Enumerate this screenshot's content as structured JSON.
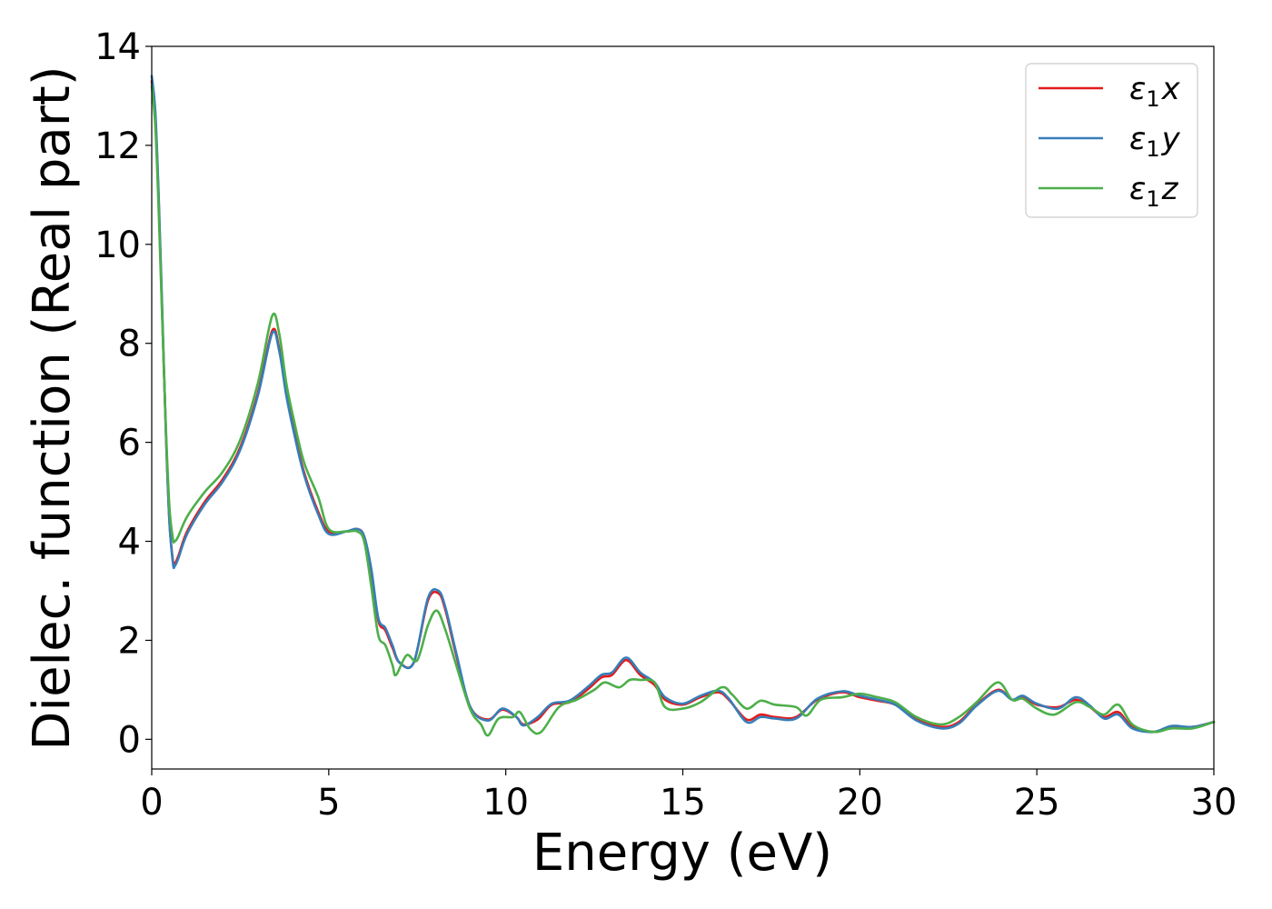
{
  "chart_data": {
    "type": "line",
    "title": "",
    "xlabel": "Energy (eV)",
    "ylabel": "Dielec. function (Real part)",
    "xlim": [
      0,
      30
    ],
    "ylim": [
      -0.6,
      14
    ],
    "xticks": [
      0,
      5,
      10,
      15,
      20,
      25,
      30
    ],
    "yticks": [
      0,
      2,
      4,
      6,
      8,
      10,
      12,
      14
    ],
    "grid": false,
    "legend_position": "top-right",
    "series": [
      {
        "name": "ε1x",
        "label_base": "ε",
        "label_sub": "1",
        "label_suffix": "x",
        "color": "#e41a1c",
        "points": [
          [
            0,
            13.3
          ],
          [
            0.1,
            12.6
          ],
          [
            0.2,
            10.8
          ],
          [
            0.3,
            8.5
          ],
          [
            0.4,
            6.2
          ],
          [
            0.5,
            4.4
          ],
          [
            0.6,
            3.6
          ],
          [
            0.65,
            3.55
          ],
          [
            0.75,
            3.7
          ],
          [
            1.0,
            4.2
          ],
          [
            1.5,
            4.8
          ],
          [
            2.0,
            5.25
          ],
          [
            2.5,
            5.9
          ],
          [
            3.0,
            7.0
          ],
          [
            3.4,
            8.25
          ],
          [
            3.6,
            7.9
          ],
          [
            3.8,
            7.0
          ],
          [
            4.0,
            6.3
          ],
          [
            4.3,
            5.4
          ],
          [
            4.7,
            4.6
          ],
          [
            5.0,
            4.2
          ],
          [
            5.5,
            4.2
          ],
          [
            5.8,
            4.25
          ],
          [
            6.0,
            4.1
          ],
          [
            6.2,
            3.4
          ],
          [
            6.4,
            2.4
          ],
          [
            6.6,
            2.2
          ],
          [
            6.8,
            1.85
          ],
          [
            7.0,
            1.55
          ],
          [
            7.4,
            1.55
          ],
          [
            7.8,
            2.8
          ],
          [
            8.1,
            2.95
          ],
          [
            8.3,
            2.6
          ],
          [
            8.6,
            1.7
          ],
          [
            9.0,
            0.65
          ],
          [
            9.5,
            0.4
          ],
          [
            9.9,
            0.6
          ],
          [
            10.3,
            0.45
          ],
          [
            10.5,
            0.3
          ],
          [
            10.9,
            0.4
          ],
          [
            11.3,
            0.7
          ],
          [
            11.8,
            0.75
          ],
          [
            12.3,
            1.0
          ],
          [
            12.7,
            1.25
          ],
          [
            13.0,
            1.3
          ],
          [
            13.4,
            1.6
          ],
          [
            13.8,
            1.3
          ],
          [
            14.2,
            1.1
          ],
          [
            14.5,
            0.8
          ],
          [
            15.0,
            0.7
          ],
          [
            15.5,
            0.85
          ],
          [
            16.0,
            0.95
          ],
          [
            16.3,
            0.8
          ],
          [
            16.8,
            0.4
          ],
          [
            17.2,
            0.5
          ],
          [
            17.6,
            0.45
          ],
          [
            18.2,
            0.45
          ],
          [
            18.8,
            0.8
          ],
          [
            19.5,
            0.95
          ],
          [
            20.0,
            0.85
          ],
          [
            20.5,
            0.78
          ],
          [
            21.0,
            0.7
          ],
          [
            21.6,
            0.4
          ],
          [
            22.3,
            0.25
          ],
          [
            22.8,
            0.35
          ],
          [
            23.3,
            0.7
          ],
          [
            23.9,
            1.0
          ],
          [
            24.3,
            0.8
          ],
          [
            24.6,
            0.85
          ],
          [
            25.0,
            0.7
          ],
          [
            25.6,
            0.65
          ],
          [
            26.1,
            0.8
          ],
          [
            26.5,
            0.65
          ],
          [
            26.9,
            0.45
          ],
          [
            27.3,
            0.55
          ],
          [
            27.7,
            0.25
          ],
          [
            28.3,
            0.15
          ],
          [
            28.8,
            0.25
          ],
          [
            29.4,
            0.25
          ],
          [
            30.0,
            0.35
          ]
        ]
      },
      {
        "name": "ε1y",
        "label_base": "ε",
        "label_sub": "1",
        "label_suffix": "y",
        "color": "#377eb8",
        "points": [
          [
            0,
            13.4
          ],
          [
            0.1,
            12.7
          ],
          [
            0.2,
            10.9
          ],
          [
            0.3,
            8.6
          ],
          [
            0.4,
            6.2
          ],
          [
            0.5,
            4.4
          ],
          [
            0.6,
            3.55
          ],
          [
            0.65,
            3.5
          ],
          [
            0.75,
            3.65
          ],
          [
            1.0,
            4.15
          ],
          [
            1.5,
            4.75
          ],
          [
            2.0,
            5.2
          ],
          [
            2.5,
            5.85
          ],
          [
            3.0,
            6.95
          ],
          [
            3.4,
            8.2
          ],
          [
            3.6,
            7.85
          ],
          [
            3.8,
            6.95
          ],
          [
            4.0,
            6.25
          ],
          [
            4.3,
            5.35
          ],
          [
            4.7,
            4.55
          ],
          [
            5.0,
            4.15
          ],
          [
            5.5,
            4.2
          ],
          [
            5.8,
            4.25
          ],
          [
            6.0,
            4.1
          ],
          [
            6.2,
            3.45
          ],
          [
            6.4,
            2.45
          ],
          [
            6.6,
            2.25
          ],
          [
            6.8,
            1.9
          ],
          [
            7.0,
            1.55
          ],
          [
            7.4,
            1.55
          ],
          [
            7.8,
            2.85
          ],
          [
            8.1,
            3.0
          ],
          [
            8.3,
            2.65
          ],
          [
            8.6,
            1.75
          ],
          [
            9.0,
            0.65
          ],
          [
            9.5,
            0.38
          ],
          [
            9.9,
            0.62
          ],
          [
            10.3,
            0.45
          ],
          [
            10.5,
            0.28
          ],
          [
            10.9,
            0.45
          ],
          [
            11.3,
            0.72
          ],
          [
            11.8,
            0.78
          ],
          [
            12.3,
            1.05
          ],
          [
            12.7,
            1.3
          ],
          [
            13.0,
            1.35
          ],
          [
            13.4,
            1.65
          ],
          [
            13.8,
            1.35
          ],
          [
            14.2,
            1.15
          ],
          [
            14.5,
            0.85
          ],
          [
            15.0,
            0.72
          ],
          [
            15.5,
            0.88
          ],
          [
            16.0,
            0.98
          ],
          [
            16.3,
            0.82
          ],
          [
            16.8,
            0.35
          ],
          [
            17.2,
            0.45
          ],
          [
            17.6,
            0.42
          ],
          [
            18.2,
            0.42
          ],
          [
            18.8,
            0.82
          ],
          [
            19.5,
            0.97
          ],
          [
            20.0,
            0.88
          ],
          [
            20.5,
            0.8
          ],
          [
            21.0,
            0.7
          ],
          [
            21.6,
            0.38
          ],
          [
            22.3,
            0.22
          ],
          [
            22.8,
            0.32
          ],
          [
            23.3,
            0.68
          ],
          [
            23.9,
            0.98
          ],
          [
            24.3,
            0.8
          ],
          [
            24.6,
            0.88
          ],
          [
            25.0,
            0.72
          ],
          [
            25.6,
            0.62
          ],
          [
            26.1,
            0.85
          ],
          [
            26.5,
            0.68
          ],
          [
            26.9,
            0.42
          ],
          [
            27.3,
            0.5
          ],
          [
            27.7,
            0.22
          ],
          [
            28.3,
            0.15
          ],
          [
            28.8,
            0.27
          ],
          [
            29.4,
            0.25
          ],
          [
            30.0,
            0.35
          ]
        ]
      },
      {
        "name": "ε1z",
        "label_base": "ε",
        "label_sub": "1",
        "label_suffix": "z",
        "color": "#4daf4a",
        "points": [
          [
            0,
            13.2
          ],
          [
            0.1,
            12.4
          ],
          [
            0.2,
            10.6
          ],
          [
            0.3,
            8.4
          ],
          [
            0.4,
            6.3
          ],
          [
            0.5,
            4.7
          ],
          [
            0.6,
            4.05
          ],
          [
            0.65,
            4.0
          ],
          [
            0.75,
            4.1
          ],
          [
            1.0,
            4.5
          ],
          [
            1.5,
            5.0
          ],
          [
            2.0,
            5.4
          ],
          [
            2.5,
            6.05
          ],
          [
            3.0,
            7.2
          ],
          [
            3.4,
            8.55
          ],
          [
            3.6,
            8.2
          ],
          [
            3.8,
            7.2
          ],
          [
            4.0,
            6.5
          ],
          [
            4.3,
            5.6
          ],
          [
            4.7,
            4.9
          ],
          [
            5.0,
            4.25
          ],
          [
            5.5,
            4.2
          ],
          [
            5.8,
            4.2
          ],
          [
            6.0,
            4.0
          ],
          [
            6.2,
            3.1
          ],
          [
            6.4,
            2.1
          ],
          [
            6.6,
            1.9
          ],
          [
            6.8,
            1.5
          ],
          [
            6.9,
            1.3
          ],
          [
            7.2,
            1.7
          ],
          [
            7.5,
            1.6
          ],
          [
            7.8,
            2.3
          ],
          [
            8.05,
            2.6
          ],
          [
            8.3,
            2.2
          ],
          [
            8.6,
            1.5
          ],
          [
            9.0,
            0.6
          ],
          [
            9.3,
            0.3
          ],
          [
            9.5,
            0.08
          ],
          [
            9.8,
            0.42
          ],
          [
            10.2,
            0.45
          ],
          [
            10.4,
            0.55
          ],
          [
            10.7,
            0.2
          ],
          [
            11.0,
            0.15
          ],
          [
            11.5,
            0.65
          ],
          [
            12.0,
            0.8
          ],
          [
            12.5,
            1.0
          ],
          [
            12.8,
            1.15
          ],
          [
            13.2,
            1.05
          ],
          [
            13.5,
            1.2
          ],
          [
            13.8,
            1.2
          ],
          [
            14.2,
            1.15
          ],
          [
            14.5,
            0.65
          ],
          [
            15.0,
            0.62
          ],
          [
            15.5,
            0.75
          ],
          [
            16.1,
            1.05
          ],
          [
            16.4,
            0.9
          ],
          [
            16.8,
            0.62
          ],
          [
            17.2,
            0.78
          ],
          [
            17.6,
            0.7
          ],
          [
            18.2,
            0.65
          ],
          [
            18.5,
            0.48
          ],
          [
            18.9,
            0.8
          ],
          [
            19.5,
            0.85
          ],
          [
            20.0,
            0.92
          ],
          [
            20.5,
            0.85
          ],
          [
            21.0,
            0.75
          ],
          [
            21.6,
            0.45
          ],
          [
            22.3,
            0.3
          ],
          [
            22.8,
            0.45
          ],
          [
            23.3,
            0.75
          ],
          [
            23.9,
            1.15
          ],
          [
            24.3,
            0.8
          ],
          [
            24.6,
            0.82
          ],
          [
            25.0,
            0.62
          ],
          [
            25.5,
            0.5
          ],
          [
            26.1,
            0.75
          ],
          [
            26.5,
            0.65
          ],
          [
            26.9,
            0.5
          ],
          [
            27.3,
            0.7
          ],
          [
            27.7,
            0.3
          ],
          [
            28.3,
            0.15
          ],
          [
            28.8,
            0.22
          ],
          [
            29.4,
            0.22
          ],
          [
            30.0,
            0.35
          ]
        ]
      }
    ]
  }
}
